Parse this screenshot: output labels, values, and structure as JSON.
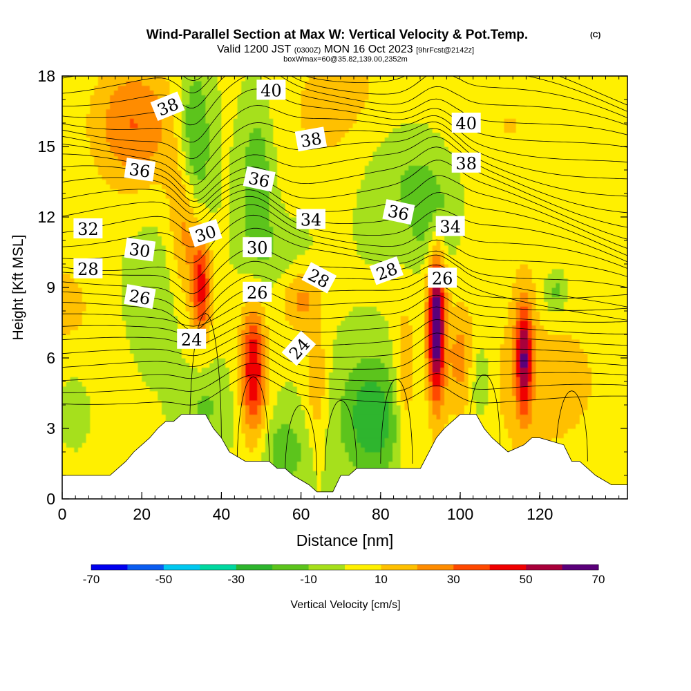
{
  "chart_data": {
    "type": "heatmap",
    "title": "Wind-Parallel Section at Max W: Vertical Velocity & Pot.Temp.",
    "title_mark": "(C)",
    "subtitle_main": "Valid 1200 JST",
    "subtitle_z": "(0300Z)",
    "subtitle_date": "MON 16 Oct 2023",
    "subtitle_fcst": "[9hrFcst@2142z]",
    "subtitle2": "boxWmax=60@35.82,139.00,2352m",
    "xlabel": "Distance [nm]",
    "ylabel": "Height [Kft MSL]",
    "xlim": [
      0,
      142
    ],
    "ylim": [
      0,
      18
    ],
    "xticks": [
      "0",
      "20",
      "40",
      "60",
      "80",
      "100",
      "120"
    ],
    "xtick_values": [
      0,
      20,
      40,
      60,
      80,
      100,
      120
    ],
    "yticks": [
      "0",
      "3",
      "6",
      "9",
      "12",
      "15",
      "18"
    ],
    "ytick_values": [
      0,
      3,
      6,
      9,
      12,
      15,
      18
    ],
    "colorbar": {
      "label": "Vertical Velocity [cm/s]",
      "tick_labels": [
        "-70",
        "-50",
        "-30",
        "-10",
        "10",
        "30",
        "50",
        "70"
      ],
      "tick_values": [
        -70,
        -50,
        -30,
        -10,
        10,
        30,
        50,
        70
      ],
      "range": [
        -70,
        70
      ],
      "colors": [
        "#0000ee",
        "#0a5cf0",
        "#00c8f0",
        "#00d8a0",
        "#2db52d",
        "#5cc41c",
        "#a6e01a",
        "#fff000",
        "#ffc000",
        "#ff8c00",
        "#ff4800",
        "#f00000",
        "#a8003a",
        "#5a007a"
      ]
    },
    "contour_field": "Potential Temperature",
    "contour_labels": [
      {
        "text": "40",
        "x": 52.5,
        "y": 17.4,
        "angle": 0
      },
      {
        "text": "38",
        "x": 26.5,
        "y": 16.7,
        "angle": -22
      },
      {
        "text": "40",
        "x": 101.5,
        "y": 16.0,
        "angle": 0
      },
      {
        "text": "38",
        "x": 62.5,
        "y": 15.3,
        "angle": -10
      },
      {
        "text": "36",
        "x": 19.5,
        "y": 14.0,
        "angle": 8
      },
      {
        "text": "38",
        "x": 101.5,
        "y": 14.3,
        "angle": 0
      },
      {
        "text": "36",
        "x": 49.5,
        "y": 13.6,
        "angle": 12
      },
      {
        "text": "36",
        "x": 84.5,
        "y": 12.2,
        "angle": 12
      },
      {
        "text": "34",
        "x": 62.5,
        "y": 11.9,
        "angle": 0
      },
      {
        "text": "32",
        "x": 6.5,
        "y": 11.5,
        "angle": 0
      },
      {
        "text": "34",
        "x": 97.5,
        "y": 11.6,
        "angle": 0
      },
      {
        "text": "30",
        "x": 36.0,
        "y": 11.3,
        "angle": -18
      },
      {
        "text": "30",
        "x": 49.0,
        "y": 10.7,
        "angle": 0
      },
      {
        "text": "30",
        "x": 19.5,
        "y": 10.6,
        "angle": 8
      },
      {
        "text": "28",
        "x": 6.5,
        "y": 9.8,
        "angle": 0
      },
      {
        "text": "28",
        "x": 64.5,
        "y": 9.4,
        "angle": 28
      },
      {
        "text": "28",
        "x": 81.5,
        "y": 9.7,
        "angle": -20
      },
      {
        "text": "26",
        "x": 95.5,
        "y": 9.4,
        "angle": 0
      },
      {
        "text": "26",
        "x": 19.5,
        "y": 8.6,
        "angle": 10
      },
      {
        "text": "26",
        "x": 49.0,
        "y": 8.8,
        "angle": 0
      },
      {
        "text": "24",
        "x": 32.5,
        "y": 6.8,
        "angle": 0
      },
      {
        "text": "24",
        "x": 59.5,
        "y": 6.4,
        "angle": -48
      }
    ],
    "terrain": {
      "x": [
        0,
        4,
        4,
        6,
        6,
        8,
        8,
        10,
        10,
        12,
        12,
        14,
        14,
        16,
        16,
        18,
        18,
        20,
        20,
        22,
        22,
        24,
        24,
        26,
        26,
        28,
        28,
        30,
        30,
        36,
        36,
        38,
        38,
        40,
        40,
        42,
        42,
        46,
        46,
        50,
        50,
        52,
        52,
        54,
        54,
        56,
        56,
        58,
        58,
        62,
        62,
        64,
        64,
        68,
        68,
        70,
        70,
        72,
        72,
        74,
        74,
        86,
        86,
        90,
        90,
        94,
        94,
        96,
        96,
        98,
        98,
        100,
        100,
        104,
        104,
        106,
        106,
        108,
        108,
        110,
        110,
        112,
        112,
        116,
        116,
        118,
        118,
        120,
        120,
        126,
        126,
        128,
        128,
        130,
        130,
        132,
        132,
        134,
        134,
        138,
        138,
        140
      ],
      "y": [
        1.0,
        1.0,
        1.0,
        1.0,
        1.0,
        1.0,
        1.0,
        1.0,
        1.0,
        1.0,
        1.0,
        1.3,
        1.3,
        1.6,
        1.6,
        2.0,
        2.0,
        2.3,
        2.3,
        2.6,
        2.6,
        3.0,
        3.0,
        3.3,
        3.3,
        3.3,
        3.3,
        3.6,
        3.6,
        3.6,
        3.6,
        3.0,
        3.0,
        2.6,
        2.6,
        2.0,
        2.0,
        1.6,
        1.6,
        1.6,
        1.6,
        1.6,
        1.6,
        1.3,
        1.3,
        1.3,
        1.3,
        1.0,
        1.0,
        0.6,
        0.6,
        0.3,
        0.3,
        0.3,
        0.3,
        1.0,
        1.0,
        1.0,
        1.0,
        1.3,
        1.3,
        1.3,
        1.3,
        1.3,
        1.3,
        2.6,
        2.6,
        3.0,
        3.0,
        3.3,
        3.3,
        3.6,
        3.6,
        3.6,
        3.6,
        3.0,
        3.0,
        2.6,
        2.6,
        2.3,
        2.3,
        2.0,
        2.0,
        2.3,
        2.3,
        2.6,
        2.6,
        2.6,
        2.6,
        2.3,
        2.3,
        1.6,
        1.6,
        1.6,
        1.6,
        1.3,
        1.3,
        1.0,
        1.0,
        0.6,
        0.6,
        0.6
      ]
    },
    "w_fields": [
      {
        "x": 0,
        "y": 8,
        "rx": 30,
        "ry": 4,
        "w": 12
      },
      {
        "x": 120,
        "y": 5,
        "rx": 30,
        "ry": 6,
        "w": 12
      },
      {
        "x": 110,
        "y": 16,
        "rx": 25,
        "ry": 4,
        "w": 10
      },
      {
        "x": 70,
        "y": 16.5,
        "rx": 18,
        "ry": 4,
        "w": 14
      },
      {
        "x": 18,
        "y": 16,
        "rx": 11,
        "ry": 2.8,
        "w": 30
      },
      {
        "x": 31,
        "y": 12,
        "rx": 4,
        "ry": 3.5,
        "w": 28
      },
      {
        "x": 35,
        "y": 9,
        "rx": 2.5,
        "ry": 2.2,
        "w": 42
      },
      {
        "x": 48,
        "y": 5.5,
        "rx": 3.2,
        "ry": 2.8,
        "w": 50
      },
      {
        "x": 60,
        "y": 8.5,
        "rx": 5,
        "ry": 1.5,
        "w": 22
      },
      {
        "x": 64,
        "y": 5,
        "rx": 2.5,
        "ry": 2.5,
        "w": 18
      },
      {
        "x": 94,
        "y": 7.4,
        "rx": 2.2,
        "ry": 3.2,
        "w": 70
      },
      {
        "x": 100,
        "y": 6,
        "rx": 3,
        "ry": 2,
        "w": 18
      },
      {
        "x": 116,
        "y": 6,
        "rx": 2.2,
        "ry": 2.4,
        "w": 52
      },
      {
        "x": 86,
        "y": 5,
        "rx": 2.5,
        "ry": 3,
        "w": 20
      },
      {
        "x": 33,
        "y": 15,
        "rx": 4,
        "ry": 3.2,
        "w": -32
      },
      {
        "x": 49,
        "y": 13.5,
        "rx": 4,
        "ry": 3.4,
        "w": -22
      },
      {
        "x": 78,
        "y": 3.5,
        "rx": 8,
        "ry": 2.6,
        "w": -30
      },
      {
        "x": 86,
        "y": 14,
        "rx": 14,
        "ry": 3,
        "w": -16
      },
      {
        "x": 93,
        "y": 12,
        "rx": 6,
        "ry": 2,
        "w": -14
      },
      {
        "x": 22,
        "y": 8.5,
        "rx": 11,
        "ry": 3.2,
        "w": -14
      },
      {
        "x": 105,
        "y": 5,
        "rx": 3,
        "ry": 2,
        "w": -16
      },
      {
        "x": 124,
        "y": 8.8,
        "rx": 3,
        "ry": 1,
        "w": -20
      },
      {
        "x": 56,
        "y": 2,
        "rx": 5,
        "ry": 1.5,
        "w": -18
      },
      {
        "x": 36,
        "y": 4,
        "rx": 6,
        "ry": 1.5,
        "w": -12
      },
      {
        "x": 55,
        "y": 10.5,
        "rx": 8,
        "ry": 1.5,
        "w": -8
      },
      {
        "x": 3,
        "y": 4.5,
        "rx": 5,
        "ry": 1.8,
        "w": -8
      }
    ]
  }
}
